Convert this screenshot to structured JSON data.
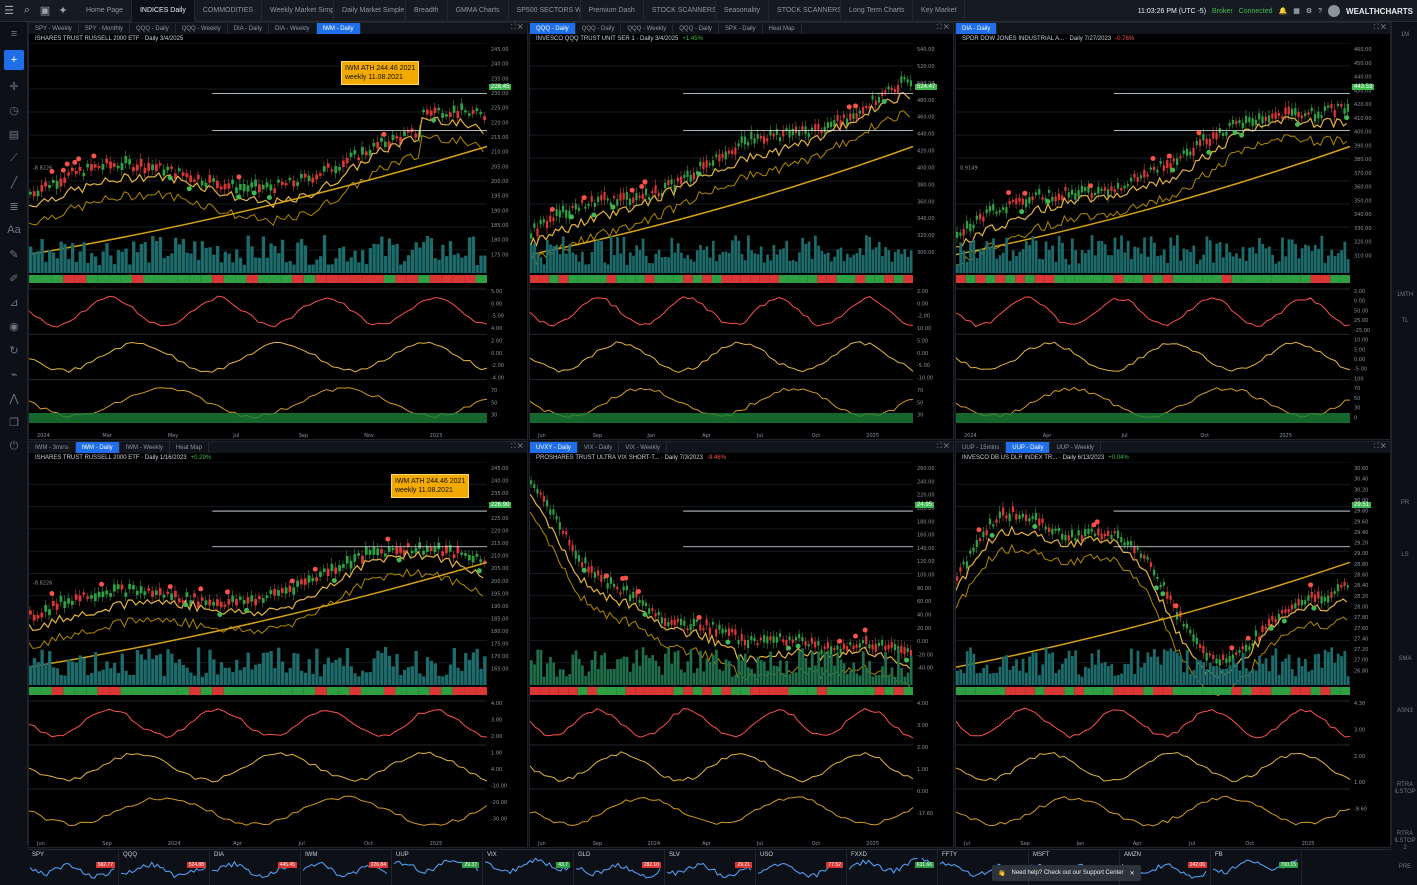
{
  "topbar": {
    "tabs": [
      "Home Page",
      "INDICES Daily",
      "COMMODITIES",
      "Weekly Market Simple Tr...",
      "Daily Market Simple Trm...",
      "Breadth",
      "GMMA Charts",
      "SP500 SECTORS WEEKLY",
      "Premium Dash",
      "STOCK SCANNERS",
      "Seasonality",
      "STOCK SCANNERS Copy",
      "Long Term Charts",
      "Key Market"
    ],
    "active_tab": 1,
    "time": "11:03:26 PM (UTC -5)",
    "broker": "Broker",
    "connection": "Connected",
    "brand": "WEALTHCHARTS"
  },
  "left_tools": [
    "menu-icon",
    "plus-icon",
    "crosshair-icon",
    "clock-icon",
    "briefcase-icon",
    "trendline-icon",
    "line-icon",
    "fib-icon",
    "text-icon",
    "pen-icon",
    "brush-icon",
    "measure-icon",
    "eye-icon",
    "refresh-icon",
    "chart-icon",
    "pattern-icon",
    "layers-icon",
    "alert-icon"
  ],
  "right_tools": [
    "1M",
    "",
    "",
    "",
    "",
    "",
    "",
    "",
    "",
    "",
    "1MTH",
    "TL",
    "",
    "",
    "",
    "",
    "",
    "",
    "PR",
    "",
    "LS",
    "",
    "",
    "",
    "SMA",
    "",
    "ASN3",
    "",
    "",
    "RTRA ILSTOP",
    "",
    "RTRA ILSTOP 2",
    "PRE"
  ],
  "panels": [
    {
      "id": "iwm-top",
      "tabs": [
        "SPY - Weekly",
        "SPY - Monthly",
        "QQQ - Daily",
        "QQQ - Weekly",
        "DIA - Daily",
        "DIA - Weekly",
        "IWM - Daily"
      ],
      "active_tab": 6,
      "title": "ISHARES TRUST RUSSELL 2000 ETF · Daily 3/4/2025",
      "change": "",
      "last_price": "228.45",
      "annotation": [
        "IWM ATH 244.46 2021",
        "weekly 11.08.2021"
      ],
      "y_labels": [
        "245.00",
        "240.00",
        "235.00",
        "230.00",
        "225.00",
        "220.00",
        "215.00",
        "210.00",
        "205.00",
        "200.00",
        "195.00",
        "190.00",
        "185.00",
        "180.00",
        "175.00"
      ],
      "x_labels": [
        "2024",
        "Mar",
        "May",
        "Jul",
        "Sep",
        "Nov",
        "2023"
      ],
      "low_label": "-8.8226",
      "ind_labels": [
        "5.00",
        "0.00",
        "-5.00",
        "4.00",
        "2.00",
        "0.00",
        "-2.00",
        "-4.00",
        "70",
        "50",
        "30"
      ]
    },
    {
      "id": "qqq-top",
      "tabs": [
        "QQQ - Daily",
        "QQQ - Daily",
        "QQQ - Weekly",
        "QQQ - Daily",
        "SPX - Daily",
        "Heat Map"
      ],
      "active_tab": 0,
      "title": "INVESCO QQQ TRUST UNIT SER 1 · Daily 3/4/2025",
      "change": "+1.45%",
      "last_price": "524.47",
      "y_labels": [
        "540.00",
        "520.00",
        "500.00",
        "480.00",
        "460.00",
        "440.00",
        "420.00",
        "400.00",
        "380.00",
        "360.00",
        "340.00",
        "320.00",
        "300.00"
      ],
      "x_labels": [
        "Jun",
        "Sep",
        "Jan",
        "Apr",
        "Jul",
        "Oct",
        "2025"
      ],
      "ind_labels": [
        "2.00",
        "0.00",
        "-2.00",
        "10.00",
        "5.00",
        "0.00",
        "-5.00",
        "-10.00",
        "70",
        "50",
        "30"
      ]
    },
    {
      "id": "dia-top",
      "tabs": [
        "DIA - Daily"
      ],
      "active_tab": 0,
      "title": "SPDR DOW JONES INDUSTRIAL A... · Daily 7/27/2023",
      "change": "-0.76%",
      "last_price": "443.53",
      "y_labels": [
        "460.00",
        "450.00",
        "440.00",
        "430.00",
        "420.00",
        "410.00",
        "400.00",
        "390.00",
        "380.00",
        "370.00",
        "360.00",
        "350.00",
        "340.00",
        "330.00",
        "320.00",
        "310.00"
      ],
      "x_labels": [
        "2024",
        "Apr",
        "Jul",
        "Oct",
        "2025"
      ],
      "low_label": "0.9149",
      "ind_labels": [
        "2.00",
        "0.00",
        "50.00",
        "25.00",
        "-25.00",
        "10.00",
        "5.00",
        "0.00",
        "-5.00",
        "100",
        "70",
        "50",
        "30",
        "0"
      ]
    },
    {
      "id": "iwm-bottom",
      "tabs": [
        "IWM - 3mins",
        "IWM - Daily",
        "IWM - Weekly",
        "Heat Map"
      ],
      "active_tab": 1,
      "title": "ISHARES TRUST RUSSELL 2000 ETF · Daily 1/16/2023",
      "change": "+0.29%",
      "last_price": "226.90",
      "annotation": [
        "IWM ATH 244.46 2021",
        "weekly 11.08.2021"
      ],
      "y_labels": [
        "245.00",
        "240.00",
        "235.00",
        "230.00",
        "225.00",
        "220.00",
        "215.00",
        "210.00",
        "205.00",
        "200.00",
        "195.00",
        "190.00",
        "185.00",
        "180.00",
        "175.00",
        "170.00",
        "165.00"
      ],
      "x_labels": [
        "Jun",
        "Sep",
        "2024",
        "Apr",
        "Jul",
        "Oct",
        "2025"
      ],
      "low_label": "-8.8226",
      "ind_labels": [
        "4.00",
        "3.00",
        "2.00",
        "1.00",
        "4.00",
        "-10.00",
        "-20.00",
        "-30.00"
      ]
    },
    {
      "id": "uvxy-bottom",
      "tabs": [
        "UVXY - Daily",
        "VIX - Daily",
        "VIX - Weekly"
      ],
      "active_tab": 0,
      "title": "PROSHARES TRUST ULTRA VIX SHORT-T... · Daily 7/3/2023",
      "change": "-9.46%",
      "last_price": "24.95",
      "y_labels": [
        "260.00",
        "240.00",
        "220.00",
        "200.00",
        "180.00",
        "160.00",
        "140.00",
        "120.00",
        "100.00",
        "80.00",
        "60.00",
        "40.00",
        "20.00",
        "0.00",
        "-20.00",
        "-40.00"
      ],
      "x_labels": [
        "Jun",
        "Sep",
        "2024",
        "Apr",
        "Jul",
        "Oct",
        "2025"
      ],
      "ind_labels": [
        "4.00",
        "3.00",
        "2.00",
        "1.00",
        "0.00",
        "-17.60"
      ]
    },
    {
      "id": "uup-bottom",
      "tabs": [
        "UUP - 15mins",
        "UUP - Daily",
        "UUP - Weekly"
      ],
      "active_tab": 1,
      "title": "INVESCO DB US DLR INDEX TR... · Daily 6/13/2023",
      "change": "+0.04%",
      "last_price": "29.51",
      "y_labels": [
        "30.60",
        "30.40",
        "30.20",
        "30.00",
        "29.80",
        "29.60",
        "29.40",
        "29.20",
        "29.00",
        "28.80",
        "28.60",
        "28.40",
        "28.20",
        "28.00",
        "27.80",
        "27.60",
        "27.40",
        "27.20",
        "27.00",
        "26.80"
      ],
      "x_labels": [
        "Jul",
        "Sep",
        "Jan",
        "Apr",
        "Jul",
        "Oct",
        "2025"
      ],
      "ind_labels": [
        "4.30",
        "3.00",
        "2.00",
        "1.00",
        "-9.60"
      ]
    }
  ],
  "tickers": [
    {
      "sym": "SPY",
      "val": "582.77",
      "up": false
    },
    {
      "sym": "QQQ",
      "val": "524.88",
      "up": false
    },
    {
      "sym": "DIA",
      "val": "445.45",
      "up": false
    },
    {
      "sym": "IWM",
      "val": "226.84",
      "up": false
    },
    {
      "sym": "UUP",
      "val": "29.37",
      "up": true
    },
    {
      "sym": "VIX",
      "val": "43.7",
      "up": true
    },
    {
      "sym": "GLD",
      "val": "282.10",
      "up": false
    },
    {
      "sym": "SLV",
      "val": "29.21",
      "up": false
    },
    {
      "sym": "USO",
      "val": "77.52",
      "up": false
    },
    {
      "sym": "FXXD",
      "val": "631.66",
      "up": true
    },
    {
      "sym": "FFTY",
      "val": "",
      "up": false
    },
    {
      "sym": "MSFT",
      "val": "",
      "up": false
    },
    {
      "sym": "AMZN",
      "val": "242.06",
      "up": false
    },
    {
      "sym": "FB",
      "val": "700.15",
      "up": true
    }
  ],
  "help": "Need help? Check out our Support Center"
}
